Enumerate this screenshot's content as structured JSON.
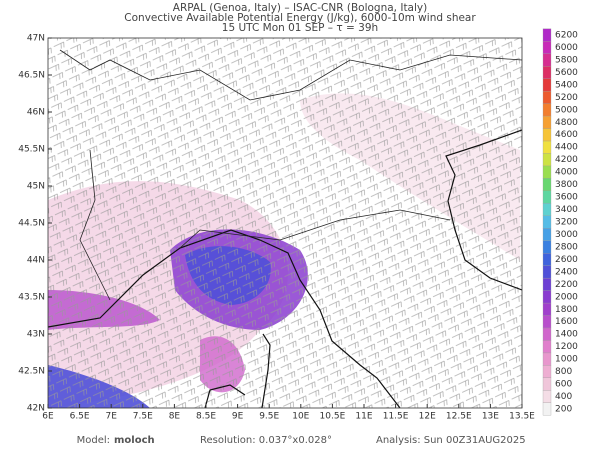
{
  "header": {
    "lines": [
      "ARPAL (Genoa, Italy)  –  ISAC-CNR (Bologna, Italy)",
      "Convective Available Potential Energy (J/kg), 6000-10m wind shear",
      "15 UTC Mon 01 SEP  –  τ = 39h"
    ]
  },
  "map": {
    "xlim": [
      6,
      13.5
    ],
    "ylim": [
      42,
      47
    ],
    "xticks": [
      {
        "value": 6,
        "label": "6E"
      },
      {
        "value": 6.5,
        "label": "6.5E"
      },
      {
        "value": 7,
        "label": "7E"
      },
      {
        "value": 7.5,
        "label": "7.5E"
      },
      {
        "value": 8,
        "label": "8E"
      },
      {
        "value": 8.5,
        "label": "8.5E"
      },
      {
        "value": 9,
        "label": "9E"
      },
      {
        "value": 9.5,
        "label": "9.5E"
      },
      {
        "value": 10,
        "label": "10E"
      },
      {
        "value": 10.5,
        "label": "10.5E"
      },
      {
        "value": 11,
        "label": "11E"
      },
      {
        "value": 11.5,
        "label": "11.5E"
      },
      {
        "value": 12,
        "label": "12E"
      },
      {
        "value": 12.5,
        "label": "12.5E"
      },
      {
        "value": 13,
        "label": "13E"
      },
      {
        "value": 13.5,
        "label": "13.5E"
      }
    ],
    "yticks": [
      {
        "value": 42,
        "label": "42N"
      },
      {
        "value": 42.5,
        "label": "42.5N"
      },
      {
        "value": 43,
        "label": "43N"
      },
      {
        "value": 43.5,
        "label": "43.5N"
      },
      {
        "value": 44,
        "label": "44N"
      },
      {
        "value": 44.5,
        "label": "44.5N"
      },
      {
        "value": 45,
        "label": "45N"
      },
      {
        "value": 45.5,
        "label": "45.5N"
      },
      {
        "value": 46,
        "label": "46N"
      },
      {
        "value": 46.5,
        "label": "46.5N"
      },
      {
        "value": 47,
        "label": "47N"
      }
    ]
  },
  "colorbar": {
    "levels": [
      200,
      400,
      600,
      800,
      1000,
      1200,
      1400,
      1600,
      1800,
      2000,
      2200,
      2400,
      2600,
      2800,
      3000,
      3200,
      3400,
      3600,
      3800,
      4000,
      4200,
      4400,
      4600,
      4800,
      5000,
      5200,
      5400,
      5600,
      5800,
      6000,
      6200
    ],
    "colors": [
      "#f2f2f2",
      "#f4dde6",
      "#f0c6da",
      "#eeaed2",
      "#e897cd",
      "#e07fcc",
      "#d066cc",
      "#b84fcc",
      "#a040cc",
      "#8a3cd0",
      "#6d40d4",
      "#5050d8",
      "#3f63dc",
      "#3a80e0",
      "#46a0e6",
      "#55bce6",
      "#5ed1d0",
      "#5ed6a0",
      "#68d770",
      "#9ade50",
      "#cde244",
      "#f0e040",
      "#f6c438",
      "#f6a032",
      "#f27e2e",
      "#ec5a2e",
      "#e43a3a",
      "#dc2f64",
      "#d62e90",
      "#c82ab8",
      "#b02ac8"
    ]
  },
  "footer": {
    "model_label": "Model:",
    "model": "moloch",
    "resolution": "Resolution: 0.037°x0.028°",
    "analysis": "Analysis: Sun 00Z31AUG2025"
  }
}
